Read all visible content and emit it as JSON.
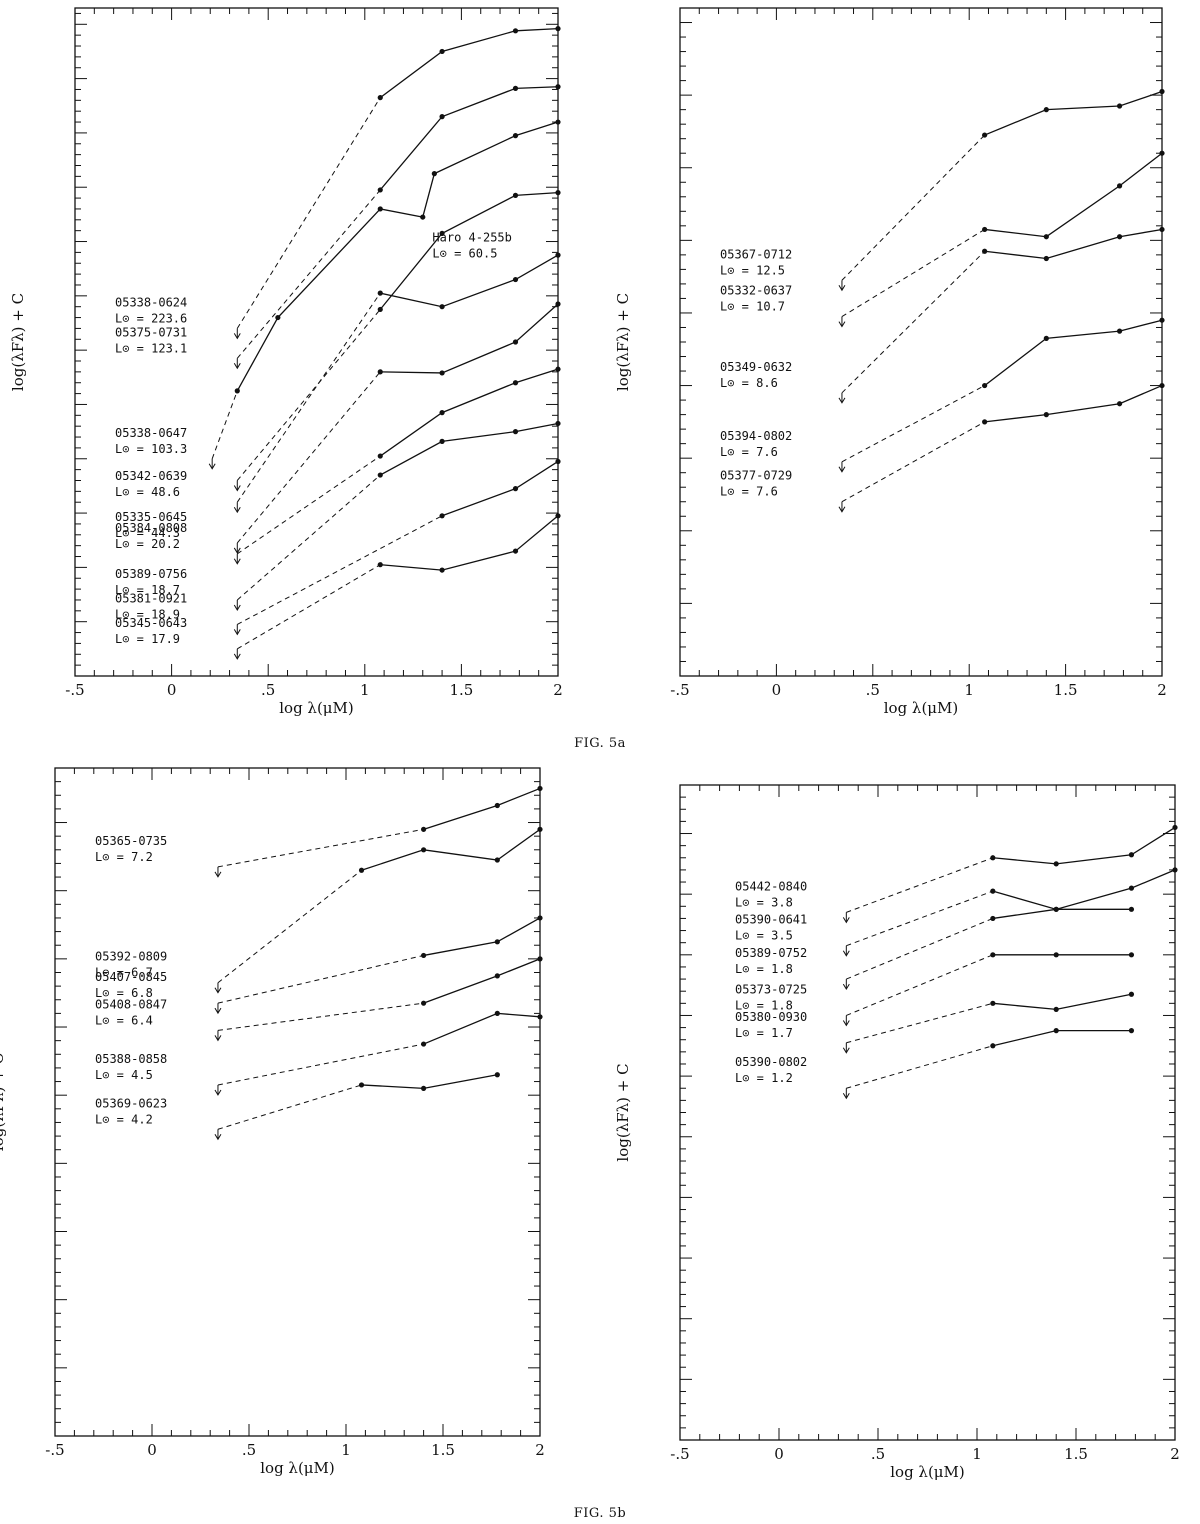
{
  "captions": {
    "top": "FIG. 5a",
    "bottom": "FIG. 5b"
  },
  "chart_data": [
    {
      "type": "line",
      "xlabel": "log λ(μM)",
      "ylabel": "log(λFλ) + C",
      "xlim": [
        -0.5,
        2
      ],
      "xticks": [
        "-.5",
        "0",
        ".5",
        "1",
        "1.5",
        "2"
      ],
      "series": [
        {
          "name": "05338-0624",
          "luminosity": "L⊙ = 223.6",
          "upper_limit": [
            0.34,
            3.4
          ],
          "points": [
            [
              1.08,
              7.65
            ],
            [
              1.4,
              8.5
            ],
            [
              1.78,
              8.88
            ],
            [
              2.0,
              8.92
            ]
          ]
        },
        {
          "name": "05375-0731",
          "luminosity": "L⊙ = 123.1",
          "upper_limit": [
            0.34,
            2.85
          ],
          "points": [
            [
              1.08,
              5.95
            ],
            [
              1.4,
              7.3
            ],
            [
              1.78,
              7.82
            ],
            [
              2.0,
              7.85
            ]
          ]
        },
        {
          "name": "05338-0647",
          "luminosity": "L⊙ = 103.3",
          "upper_limit": [
            0.21,
            1.0
          ],
          "points": [
            [
              0.34,
              2.25
            ],
            [
              0.55,
              3.6
            ],
            [
              1.08,
              5.6
            ],
            [
              1.3,
              5.45
            ],
            [
              1.36,
              6.25
            ],
            [
              1.78,
              6.95
            ],
            [
              2.0,
              7.2
            ]
          ]
        },
        {
          "name": "Haro 4-255b",
          "luminosity": "L⊙ = 60.5",
          "upper_limit": [
            0.34,
            0.6
          ],
          "points": [
            [
              1.08,
              3.75
            ],
            [
              1.4,
              5.15
            ],
            [
              1.78,
              5.85
            ],
            [
              2.0,
              5.9
            ]
          ]
        },
        {
          "name": "05342-0639",
          "luminosity": "L⊙ = 48.6",
          "upper_limit": [
            0.34,
            0.2
          ],
          "points": [
            [
              1.08,
              4.05
            ],
            [
              1.4,
              3.8
            ],
            [
              1.78,
              4.3
            ],
            [
              2.0,
              4.75
            ]
          ]
        },
        {
          "name": "05335-0645",
          "luminosity": "L⊙ = 44.3",
          "upper_limit": [
            0.34,
            -0.55
          ],
          "points": [
            [
              1.08,
              2.6
            ],
            [
              1.4,
              2.58
            ],
            [
              1.78,
              3.15
            ],
            [
              2.0,
              3.85
            ]
          ]
        },
        {
          "name": "05384-0808",
          "luminosity": "L⊙ = 20.2",
          "upper_limit": [
            0.34,
            -0.75
          ],
          "points": [
            [
              1.08,
              1.05
            ],
            [
              1.4,
              1.85
            ],
            [
              1.78,
              2.4
            ],
            [
              2.0,
              2.65
            ]
          ]
        },
        {
          "name": "05389-0756",
          "luminosity": "L⊙ = 18.7",
          "upper_limit": [
            0.34,
            -1.6
          ],
          "points": [
            [
              1.08,
              0.7
            ],
            [
              1.4,
              1.32
            ],
            [
              1.78,
              1.5
            ],
            [
              2.0,
              1.65
            ]
          ]
        },
        {
          "name": "05381-0921",
          "luminosity": "L⊙ = 18.9",
          "upper_limit": [
            0.34,
            -2.05
          ],
          "points": [
            [
              1.4,
              -0.05
            ],
            [
              1.78,
              0.45
            ],
            [
              2.0,
              0.95
            ]
          ]
        },
        {
          "name": "05345-0643",
          "luminosity": "L⊙ = 17.9",
          "upper_limit": [
            0.34,
            -2.5
          ],
          "points": [
            [
              1.08,
              -0.95
            ],
            [
              1.4,
              -1.05
            ],
            [
              1.78,
              -0.7
            ],
            [
              2.0,
              -0.05
            ]
          ]
        }
      ]
    },
    {
      "type": "line",
      "xlabel": "log λ(μM)",
      "ylabel": "log(λFλ) + C",
      "xlim": [
        -0.5,
        2
      ],
      "xticks": [
        "-.5",
        "0",
        ".5",
        "1",
        "1.5",
        "2"
      ],
      "series": [
        {
          "name": "05367-0712",
          "luminosity": "L⊙ = 12.5",
          "upper_limit": [
            0.34,
            2.45
          ],
          "points": [
            [
              1.08,
              4.45
            ],
            [
              1.4,
              4.8
            ],
            [
              1.78,
              4.85
            ],
            [
              2.0,
              5.05
            ]
          ]
        },
        {
          "name": "05332-0637",
          "luminosity": "L⊙ = 10.7",
          "upper_limit": [
            0.34,
            1.95
          ],
          "points": [
            [
              1.08,
              3.15
            ],
            [
              1.4,
              3.05
            ],
            [
              1.78,
              3.75
            ],
            [
              2.0,
              4.2
            ]
          ]
        },
        {
          "name": "05349-0632",
          "luminosity": "L⊙ = 8.6",
          "upper_limit": [
            0.34,
            0.9
          ],
          "points": [
            [
              1.08,
              2.85
            ],
            [
              1.4,
              2.75
            ],
            [
              1.78,
              3.05
            ],
            [
              2.0,
              3.15
            ]
          ]
        },
        {
          "name": "05394-0802",
          "luminosity": "L⊙ = 7.6",
          "upper_limit": [
            0.34,
            -0.05
          ],
          "points": [
            [
              1.08,
              1.0
            ],
            [
              1.4,
              1.65
            ],
            [
              1.78,
              1.75
            ],
            [
              2.0,
              1.9
            ]
          ]
        },
        {
          "name": "05377-0729",
          "luminosity": "L⊙ = 7.6",
          "upper_limit": [
            0.34,
            -0.6
          ],
          "points": [
            [
              1.08,
              0.5
            ],
            [
              1.4,
              0.6
            ],
            [
              1.78,
              0.75
            ],
            [
              2.0,
              1.0
            ]
          ]
        }
      ]
    },
    {
      "type": "line",
      "xlabel": "log λ(μM)",
      "ylabel": "log(λFλ) + C",
      "xlim": [
        -0.5,
        2
      ],
      "xticks": [
        "-.5",
        "0",
        ".5",
        "1",
        "1.5",
        "2"
      ],
      "series": [
        {
          "name": "05365-0735",
          "luminosity": "L⊙ = 7.2",
          "upper_limit": [
            0.34,
            4.35
          ],
          "points": [
            [
              1.4,
              4.9
            ],
            [
              1.78,
              5.25
            ],
            [
              2.0,
              5.5
            ]
          ]
        },
        {
          "name": "05392-0809",
          "luminosity": "L⊙ = 6.7",
          "upper_limit": [
            0.34,
            2.65
          ],
          "points": [
            [
              1.08,
              4.3
            ],
            [
              1.4,
              4.6
            ],
            [
              1.78,
              4.45
            ],
            [
              2.0,
              4.9
            ]
          ]
        },
        {
          "name": "05407-0845",
          "luminosity": "L⊙ = 6.8",
          "upper_limit": [
            0.34,
            2.35
          ],
          "points": [
            [
              1.4,
              3.05
            ],
            [
              1.78,
              3.25
            ],
            [
              2.0,
              3.6
            ]
          ]
        },
        {
          "name": "05408-0847",
          "luminosity": "L⊙ = 6.4",
          "upper_limit": [
            0.34,
            1.95
          ],
          "points": [
            [
              1.4,
              2.35
            ],
            [
              1.78,
              2.75
            ],
            [
              2.0,
              3.0
            ]
          ]
        },
        {
          "name": "05388-0858",
          "luminosity": "L⊙ = 4.5",
          "upper_limit": [
            0.34,
            1.15
          ],
          "points": [
            [
              1.4,
              1.75
            ],
            [
              1.78,
              2.2
            ],
            [
              2.0,
              2.15
            ]
          ]
        },
        {
          "name": "05369-0623",
          "luminosity": "L⊙ = 4.2",
          "upper_limit": [
            0.34,
            0.5
          ],
          "points": [
            [
              1.08,
              1.15
            ],
            [
              1.4,
              1.1
            ],
            [
              1.78,
              1.3
            ]
          ]
        }
      ]
    },
    {
      "type": "line",
      "xlabel": "log λ(μM)",
      "ylabel": "log(λFλ) + C",
      "xlim": [
        -0.5,
        2
      ],
      "xticks": [
        "-.5",
        "0",
        ".5",
        "1",
        "1.5",
        "2"
      ],
      "series": [
        {
          "name": "05442-0840",
          "luminosity": "L⊙ = 3.8",
          "upper_limit": [
            0.34,
            3.7
          ],
          "points": [
            [
              1.08,
              4.6
            ],
            [
              1.4,
              4.5
            ],
            [
              1.78,
              4.65
            ],
            [
              2.0,
              5.1
            ]
          ]
        },
        {
          "name": "05390-0641",
          "luminosity": "L⊙ = 3.5",
          "upper_limit": [
            0.34,
            3.15
          ],
          "points": [
            [
              1.08,
              4.05
            ],
            [
              1.4,
              3.75
            ],
            [
              1.78,
              4.1
            ],
            [
              2.0,
              4.4
            ]
          ]
        },
        {
          "name": "05389-0752",
          "luminosity": "L⊙ = 1.8",
          "upper_limit": [
            0.34,
            2.6
          ],
          "points": [
            [
              1.08,
              3.6
            ],
            [
              1.4,
              3.75
            ],
            [
              1.78,
              3.75
            ]
          ]
        },
        {
          "name": "05373-0725",
          "luminosity": "L⊙ = 1.8",
          "upper_limit": [
            0.34,
            2.0
          ],
          "points": [
            [
              1.08,
              3.0
            ],
            [
              1.4,
              3.0
            ],
            [
              1.78,
              3.0
            ]
          ]
        },
        {
          "name": "05380-0930",
          "luminosity": "L⊙ = 1.7",
          "upper_limit": [
            0.34,
            1.55
          ],
          "points": [
            [
              1.08,
              2.2
            ],
            [
              1.4,
              2.1
            ],
            [
              1.78,
              2.35
            ]
          ]
        },
        {
          "name": "05390-0802",
          "luminosity": "L⊙ = 1.2",
          "upper_limit": [
            0.34,
            0.8
          ],
          "points": [
            [
              1.08,
              1.5
            ],
            [
              1.4,
              1.75
            ],
            [
              1.78,
              1.75
            ]
          ]
        }
      ]
    }
  ]
}
